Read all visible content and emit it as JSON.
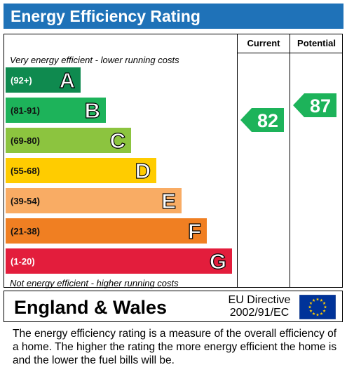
{
  "header": {
    "title": "Energy Efficiency Rating"
  },
  "columns": {
    "current": "Current",
    "potential": "Potential"
  },
  "captions": {
    "top": "Very energy efficient - lower running costs",
    "bottom": "Not energy efficient - higher running costs"
  },
  "footer": {
    "region": "England & Wales",
    "directive_line1": "EU Directive",
    "directive_line2": "2002/91/EC"
  },
  "explanation": "The energy efficiency rating is a measure of the overall efficiency of a home.  The higher the rating the more energy efficient the home is and the lower the fuel bills will be.",
  "colors": {
    "title_bar": "#1f72b8",
    "A": "#0f8a4f",
    "B": "#1db35a",
    "C": "#8cc43f",
    "D": "#ffcc00",
    "E": "#f9ac64",
    "F": "#f07f22",
    "G": "#e31d3c",
    "flag": "#003399",
    "flag_stars": "#ffcc00"
  },
  "chart_data": {
    "type": "bar",
    "categories": [
      "A",
      "B",
      "C",
      "D",
      "E",
      "F",
      "G"
    ],
    "ranges": [
      "(92+)",
      "(81-91)",
      "(69-80)",
      "(55-68)",
      "(39-54)",
      "(21-38)",
      "(1-20)"
    ],
    "bands": [
      {
        "letter": "A",
        "range": "(92+)",
        "color": "#0f8a4f"
      },
      {
        "letter": "B",
        "range": "(81-91)",
        "color": "#1db35a"
      },
      {
        "letter": "C",
        "range": "(69-80)",
        "color": "#8cc43f"
      },
      {
        "letter": "D",
        "range": "(55-68)",
        "color": "#ffcc00"
      },
      {
        "letter": "E",
        "range": "(39-54)",
        "color": "#f9ac64"
      },
      {
        "letter": "F",
        "range": "(21-38)",
        "color": "#f07f22"
      },
      {
        "letter": "G",
        "range": "(1-20)",
        "color": "#e31d3c"
      }
    ],
    "current": {
      "label": "Current",
      "value": 82,
      "band": "B",
      "color": "#1db35a"
    },
    "potential": {
      "label": "Potential",
      "value": 87,
      "band": "B",
      "color": "#1db35a"
    }
  }
}
